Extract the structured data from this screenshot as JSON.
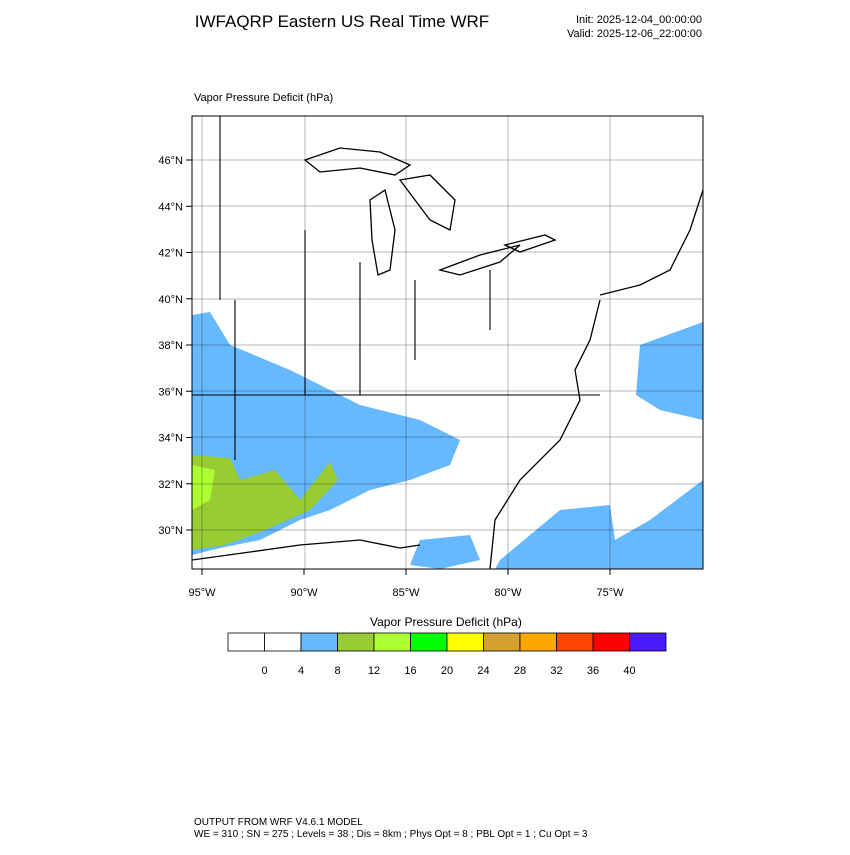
{
  "header": {
    "title": "IWFAQRP Eastern US Real Time WRF",
    "init": "Init: 2025-12-04_00:00:00",
    "valid": "Valid: 2025-12-06_22:00:00"
  },
  "map": {
    "subtitle": "Vapor Pressure Deficit   (hPa)",
    "lat_labels": [
      "46°N",
      "44°N",
      "42°N",
      "40°N",
      "38°N",
      "36°N",
      "34°N",
      "32°N",
      "30°N"
    ],
    "lon_labels": [
      "95°W",
      "90°W",
      "85°W",
      "80°W",
      "75°W"
    ]
  },
  "colorbar": {
    "title": "Vapor Pressure Deficit  (hPa)",
    "colors": [
      "#ffffff",
      "#ffffff",
      "#66b8ff",
      "#99cc33",
      "#adff2f",
      "#00ff00",
      "#ffff00",
      "#d4a030",
      "#ffa500",
      "#ff4500",
      "#ff0000",
      "#4a1aff"
    ],
    "ticks": [
      0,
      4,
      8,
      12,
      16,
      20,
      24,
      28,
      32,
      36,
      40
    ]
  },
  "footer": {
    "line1": "OUTPUT FROM WRF V4.6.1 MODEL",
    "line2": "WE = 310 ; SN = 275 ; Levels = 38 ; Dis = 8km ; Phys Opt = 8 ; PBL Opt = 1 ; Cu Opt = 3"
  }
}
